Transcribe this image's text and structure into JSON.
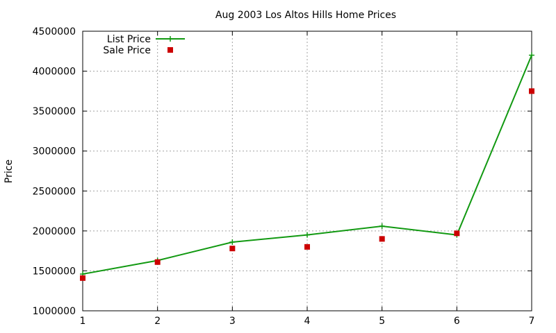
{
  "chart_data": {
    "type": "line",
    "title": "Aug 2003 Los Altos Hills Home Prices",
    "xlabel": "",
    "ylabel": "Price",
    "x": [
      1,
      2,
      3,
      4,
      5,
      6,
      7
    ],
    "xlim": [
      1,
      7
    ],
    "ylim": [
      1000000,
      4500000
    ],
    "xticks": [
      "1",
      "2",
      "3",
      "4",
      "5",
      "6",
      "7"
    ],
    "yticks": [
      "1000000",
      "1500000",
      "2000000",
      "2500000",
      "3000000",
      "3500000",
      "4000000",
      "4500000"
    ],
    "grid": true,
    "legend_position": "top-left",
    "series": [
      {
        "name": "List Price",
        "style": "linespoints",
        "marker": "plus",
        "color": "#119911",
        "values": [
          1460000,
          1630000,
          1860000,
          1950000,
          2060000,
          1950000,
          4200000
        ]
      },
      {
        "name": "Sale Price",
        "style": "points",
        "marker": "square",
        "color": "#cc0000",
        "values": [
          1410000,
          1610000,
          1780000,
          1800000,
          1900000,
          1970000,
          3750000
        ]
      }
    ]
  }
}
